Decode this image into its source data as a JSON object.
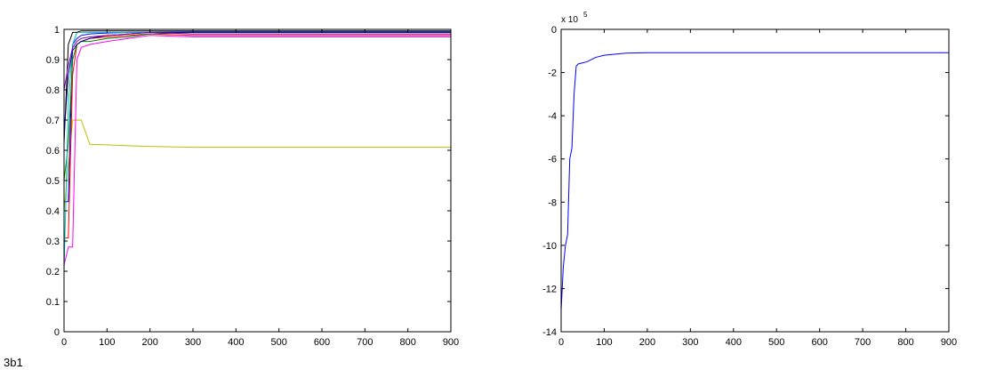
{
  "caption": "3b1",
  "chart_data": [
    {
      "type": "line",
      "x": [
        0,
        10,
        20,
        30,
        40,
        60,
        100,
        150,
        200,
        300,
        500,
        900
      ],
      "series": [
        {
          "color": "#bfbf00",
          "values": [
            0.4,
            0.55,
            0.7,
            0.7,
            0.7,
            0.62,
            0.618,
            0.615,
            0.613,
            0.61,
            0.61,
            0.61
          ]
        },
        {
          "color": "#0000ff",
          "values": [
            0.43,
            0.43,
            0.95,
            0.97,
            0.98,
            0.985,
            0.988,
            0.99,
            0.99,
            0.992,
            0.992,
            0.992
          ]
        },
        {
          "color": "#ff00ff",
          "values": [
            0.22,
            0.28,
            0.28,
            0.9,
            0.94,
            0.95,
            0.96,
            0.97,
            0.98,
            0.975,
            0.975,
            0.975
          ]
        },
        {
          "color": "#ff0000",
          "values": [
            0.31,
            0.31,
            0.85,
            0.95,
            0.96,
            0.97,
            0.975,
            0.98,
            0.985,
            0.98,
            0.98,
            0.98
          ]
        },
        {
          "color": "#008000",
          "values": [
            0.5,
            0.62,
            0.9,
            0.95,
            0.96,
            0.96,
            0.97,
            0.975,
            0.985,
            0.99,
            0.99,
            0.99
          ]
        },
        {
          "color": "#00bfbf",
          "values": [
            0.2,
            0.75,
            0.95,
            0.99,
            0.99,
            0.99,
            0.99,
            0.99,
            0.99,
            0.99,
            0.99,
            0.99
          ]
        },
        {
          "color": "#000000",
          "values": [
            0.62,
            0.95,
            0.99,
            0.99,
            0.995,
            0.995,
            0.995,
            0.995,
            0.995,
            0.995,
            0.995,
            0.995
          ]
        },
        {
          "color": "#000080",
          "values": [
            0.65,
            0.85,
            0.93,
            0.95,
            0.96,
            0.97,
            0.98,
            0.985,
            0.99,
            0.99,
            0.99,
            0.99
          ]
        },
        {
          "color": "#7f00bf",
          "values": [
            0.8,
            0.88,
            0.94,
            0.96,
            0.97,
            0.975,
            0.98,
            0.985,
            0.99,
            0.985,
            0.985,
            0.985
          ]
        }
      ],
      "xlim": [
        0,
        900
      ],
      "xticks": [
        0,
        100,
        200,
        300,
        400,
        500,
        600,
        700,
        800,
        900
      ],
      "ylim": [
        0,
        1
      ],
      "yticks": [
        0,
        0.1,
        0.2,
        0.3,
        0.4,
        0.5,
        0.6,
        0.7,
        0.8,
        0.9,
        1
      ]
    },
    {
      "type": "line",
      "x": [
        0,
        5,
        10,
        15,
        20,
        25,
        30,
        35,
        40,
        60,
        80,
        100,
        150,
        200,
        300,
        500,
        900
      ],
      "series": [
        {
          "color": "#0000ff",
          "values": [
            -13,
            -11,
            -10,
            -9.5,
            -6,
            -5.5,
            -3,
            -1.7,
            -1.6,
            -1.5,
            -1.3,
            -1.2,
            -1.1,
            -1.08,
            -1.08,
            -1.08,
            -1.08
          ]
        }
      ],
      "y_multiplier": "x 10",
      "y_multiplier_exponent": "5",
      "xlim": [
        0,
        900
      ],
      "xticks": [
        0,
        100,
        200,
        300,
        400,
        500,
        600,
        700,
        800,
        900
      ],
      "ylim": [
        -14,
        0
      ],
      "yticks": [
        -14,
        -12,
        -10,
        -8,
        -6,
        -4,
        -2,
        0
      ]
    }
  ]
}
